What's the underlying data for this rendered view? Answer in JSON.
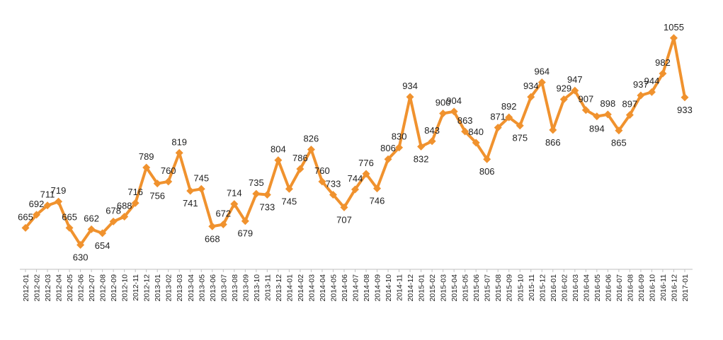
{
  "chart_data": {
    "type": "line",
    "title": "",
    "xlabel": "",
    "ylabel": "",
    "ylim": [
      590,
      1075
    ],
    "grid": false,
    "legend": "none",
    "line_color": "#f0922e",
    "categories": [
      "2012-01",
      "2012-02",
      "2012-03",
      "2012-04",
      "2012-05",
      "2012-06",
      "2012-07",
      "2012-08",
      "2012-09",
      "2012-10",
      "2012-11",
      "2012-12",
      "2013-01",
      "2013-02",
      "2013-03",
      "2013-04",
      "2013-05",
      "2013-06",
      "2013-07",
      "2013-08",
      "2013-09",
      "2013-10",
      "2013-11",
      "2013-12",
      "2014-01",
      "2014-02",
      "2014-03",
      "2014-04",
      "2014-05",
      "2014-06",
      "2014-07",
      "2014-08",
      "2014-09",
      "2014-10",
      "2014-11",
      "2014-12",
      "2015-01",
      "2015-02",
      "2015-03",
      "2015-04",
      "2015-05",
      "2015-06",
      "2015-07",
      "2015-08",
      "2015-09",
      "2015-10",
      "2015-11",
      "2015-12",
      "2016-01",
      "2016-02",
      "2016-03",
      "2016-04",
      "2016-05",
      "2016-06",
      "2016-07",
      "2016-08",
      "2016-09",
      "2016-10",
      "2016-11",
      "2016-12",
      "2017-01"
    ],
    "values": [
      665,
      692,
      711,
      719,
      665,
      630,
      662,
      654,
      678,
      688,
      716,
      789,
      756,
      760,
      819,
      741,
      745,
      668,
      672,
      714,
      679,
      735,
      733,
      804,
      745,
      786,
      826,
      760,
      733,
      707,
      744,
      776,
      746,
      806,
      830,
      934,
      832,
      843,
      900,
      904,
      863,
      840,
      806,
      871,
      892,
      875,
      934,
      964,
      866,
      929,
      947,
      907,
      894,
      898,
      865,
      897,
      937,
      944,
      982,
      1055,
      933
    ]
  }
}
